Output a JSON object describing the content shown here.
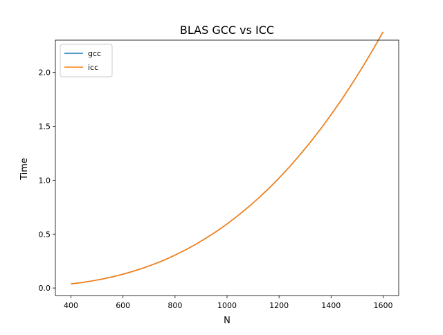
{
  "chart_data": {
    "type": "line",
    "title": "BLAS GCC vs ICC",
    "xlabel": "N",
    "ylabel": "Time",
    "xlim": [
      340,
      1660
    ],
    "ylim": [
      -0.07,
      2.3
    ],
    "xticks": [
      400,
      600,
      800,
      1000,
      1200,
      1400,
      1600
    ],
    "yticks": [
      0.0,
      0.5,
      1.0,
      1.5,
      2.0
    ],
    "xtick_labels": [
      "400",
      "600",
      "800",
      "1000",
      "1200",
      "1400",
      "1600"
    ],
    "ytick_labels": [
      "0.0",
      "0.5",
      "1.0",
      "1.5",
      "2.0"
    ],
    "grid": false,
    "legend_position": "top-left",
    "x": [
      400,
      440,
      480,
      520,
      560,
      600,
      640,
      680,
      720,
      760,
      800,
      840,
      880,
      920,
      960,
      1000,
      1040,
      1080,
      1120,
      1160,
      1200,
      1240,
      1280,
      1320,
      1360,
      1400,
      1440,
      1480,
      1520,
      1560,
      1600
    ],
    "series": [
      {
        "name": "gcc",
        "color": "#1f77b4",
        "values": [
          0.038,
          0.05,
          0.065,
          0.083,
          0.104,
          0.128,
          0.156,
          0.187,
          0.222,
          0.261,
          0.305,
          0.353,
          0.406,
          0.464,
          0.526,
          0.594,
          0.668,
          0.747,
          0.832,
          0.923,
          1.02,
          1.124,
          1.235,
          1.352,
          1.476,
          1.608,
          1.746,
          1.893,
          2.046,
          2.207,
          2.377
        ]
      },
      {
        "name": "icc",
        "color": "#ff7f0e",
        "values": [
          0.038,
          0.05,
          0.065,
          0.083,
          0.104,
          0.128,
          0.156,
          0.187,
          0.222,
          0.261,
          0.305,
          0.353,
          0.406,
          0.464,
          0.526,
          0.594,
          0.668,
          0.747,
          0.832,
          0.923,
          1.02,
          1.124,
          1.235,
          1.352,
          1.476,
          1.608,
          1.746,
          1.893,
          2.046,
          2.207,
          2.377
        ]
      }
    ]
  }
}
